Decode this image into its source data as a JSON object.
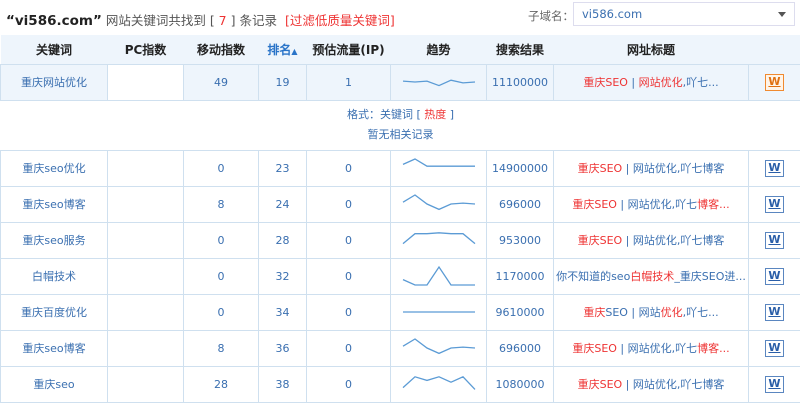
{
  "header": {
    "domain_quoted": "“vi586.com”",
    "text_before": "网站关键词共找到",
    "count_open": "[ ",
    "count": "7",
    "count_close": " ]",
    "text_after": "条记录",
    "filter_link": "[过滤低质量关键词]"
  },
  "subdomain": {
    "label": "子域名：",
    "value": "vi586.com"
  },
  "columns": [
    "关键词",
    "PC指数",
    "移动指数",
    "排名",
    "预估流量(IP)",
    "趋势",
    "搜索结果",
    "网址标题"
  ],
  "sort_arrow": "▲",
  "highlight_row": {
    "keyword": "重庆网站优化",
    "pc": "",
    "mobile": "49",
    "rank": "19",
    "traffic": "1",
    "trend": [
      0.55,
      0.5,
      0.55,
      0.3,
      0.6,
      0.45,
      0.5
    ],
    "results": "11100000",
    "title": [
      [
        "重庆SEO",
        1
      ],
      [
        " | ",
        0
      ],
      [
        "网站优化",
        1
      ],
      [
        ",吖七...",
        0
      ]
    ],
    "icon": "W"
  },
  "format_line": {
    "prefix": "格式：关键词 [ ",
    "hot": "热度",
    "suffix": " ]"
  },
  "no_records": "暂无相关记录",
  "rows": [
    {
      "keyword": "重庆seo优化",
      "pc": "",
      "mobile": "0",
      "rank": "23",
      "traffic": "0",
      "trend": [
        0.7,
        1,
        0.6,
        0.6,
        0.6,
        0.6,
        0.6
      ],
      "results": "14900000",
      "title": [
        [
          "重庆SEO",
          1
        ],
        [
          " | 网站优化,吖七博客",
          0
        ]
      ],
      "icon": "W"
    },
    {
      "keyword": "重庆seo博客",
      "pc": "",
      "mobile": "8",
      "rank": "24",
      "traffic": "0",
      "trend": [
        0.6,
        1,
        0.5,
        0.2,
        0.5,
        0.55,
        0.5
      ],
      "results": "696000",
      "title": [
        [
          "重庆SEO",
          1
        ],
        [
          " | 网站优化,吖七",
          0
        ],
        [
          "博客...",
          1
        ]
      ],
      "icon": "W"
    },
    {
      "keyword": "重庆seo服务",
      "pc": "",
      "mobile": "0",
      "rank": "28",
      "traffic": "0",
      "trend": [
        0.3,
        0.85,
        0.85,
        0.9,
        0.85,
        0.85,
        0.3
      ],
      "results": "953000",
      "title": [
        [
          "重庆SEO",
          1
        ],
        [
          " | 网站优化,吖七博客",
          0
        ]
      ],
      "icon": "W"
    },
    {
      "keyword": "白帽技术",
      "pc": "",
      "mobile": "0",
      "rank": "32",
      "traffic": "0",
      "trend": [
        0.3,
        0,
        0,
        1,
        0,
        0,
        0
      ],
      "results": "1170000",
      "title": [
        [
          "你不知道的seo",
          0
        ],
        [
          "白帽技术",
          1
        ],
        [
          "_重庆SEO进...",
          0
        ]
      ],
      "icon": "W"
    },
    {
      "keyword": "重庆百度优化",
      "pc": "",
      "mobile": "0",
      "rank": "34",
      "traffic": "0",
      "trend": [
        0.5,
        0.5,
        0.5,
        0.5,
        0.5,
        0.5,
        0.5
      ],
      "results": "9610000",
      "title": [
        [
          "重庆",
          1
        ],
        [
          "SEO | 网站",
          0
        ],
        [
          "优化",
          1
        ],
        [
          ",吖七...",
          0
        ]
      ],
      "icon": "W"
    },
    {
      "keyword": "重庆seo博客",
      "pc": "",
      "mobile": "8",
      "rank": "36",
      "traffic": "0",
      "trend": [
        0.6,
        1,
        0.5,
        0.2,
        0.5,
        0.55,
        0.5
      ],
      "results": "696000",
      "title": [
        [
          "重庆SEO",
          1
        ],
        [
          " | 网站优化,吖七",
          0
        ],
        [
          "博客...",
          1
        ]
      ],
      "icon": "W"
    },
    {
      "keyword": "重庆seo",
      "pc": "",
      "mobile": "28",
      "rank": "38",
      "traffic": "0",
      "trend": [
        0.3,
        0.9,
        0.7,
        0.9,
        0.6,
        0.9,
        0.2
      ],
      "results": "1080000",
      "title": [
        [
          "重庆SEO",
          1
        ],
        [
          " | 网站优化,吖七博客",
          0
        ]
      ],
      "icon": "W"
    }
  ],
  "colors": {
    "link": "#3a6fb0",
    "highlight": "#ee3333",
    "header_bg": "#eef5fc",
    "border": "#cfe0ef",
    "sparkline": "#5b9bd5"
  }
}
